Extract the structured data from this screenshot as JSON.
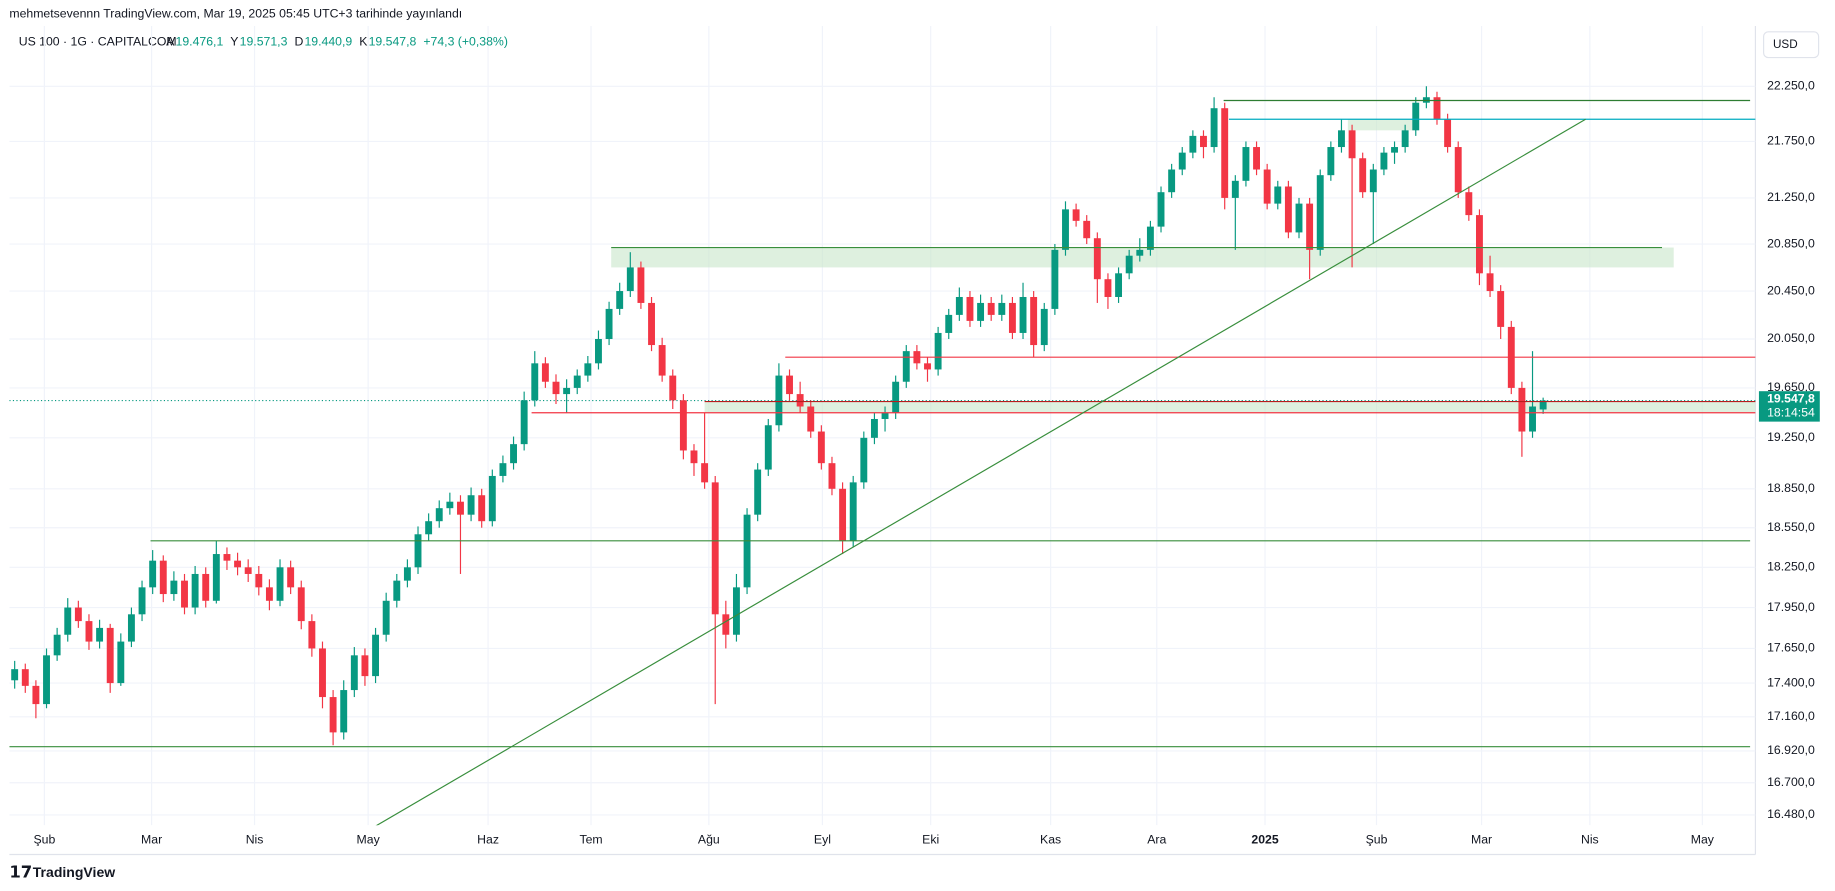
{
  "header": {
    "published": "mehmetsevennn TradingView.com, Mar 19, 2025 05:45 UTC+3 tarihinde yayınlandı",
    "symbol": "US 100 · 1G · CAPITALCOM",
    "ohlc": [
      {
        "key": "A",
        "label": "19.476,1"
      },
      {
        "key": "Y",
        "label": "19.571,3"
      },
      {
        "key": "D",
        "label": "19.440,9"
      },
      {
        "key": "K",
        "label": "19.547,8"
      }
    ],
    "change": "+74,3 (+0,38%)",
    "currency": "USD",
    "last_price_label": "19.547,8",
    "countdown": "18:14:54",
    "brand": "TradingView"
  },
  "chart_data": {
    "type": "candlestick",
    "log_scale": true,
    "grid": true,
    "up_color": "#089981",
    "down_color": "#f23645",
    "xlim": [
      -0.5,
      164
    ],
    "ylim": [
      16410,
      22810
    ],
    "xticks": [
      {
        "value": 2.8,
        "label": "Şub"
      },
      {
        "value": 12.9,
        "label": "Mar"
      },
      {
        "value": 22.6,
        "label": "Nis"
      },
      {
        "value": 33.3,
        "label": "May"
      },
      {
        "value": 44.6,
        "label": "Haz"
      },
      {
        "value": 54.3,
        "label": "Tem"
      },
      {
        "value": 65.4,
        "label": "Ağu"
      },
      {
        "value": 76.1,
        "label": "Eyl"
      },
      {
        "value": 86.3,
        "label": "Eki"
      },
      {
        "value": 97.6,
        "label": "Kas"
      },
      {
        "value": 107.6,
        "label": "Ara"
      },
      {
        "value": 117.8,
        "label": "2025"
      },
      {
        "value": 128.3,
        "label": "Şub"
      },
      {
        "value": 138.2,
        "label": "Mar"
      },
      {
        "value": 148.4,
        "label": "Nis"
      },
      {
        "value": 159,
        "label": "May"
      }
    ],
    "yticks": [
      {
        "value": 22250,
        "label": "22.250,0"
      },
      {
        "value": 21750,
        "label": "21.750,0"
      },
      {
        "value": 21250,
        "label": "21.250,0"
      },
      {
        "value": 20850,
        "label": "20.850,0"
      },
      {
        "value": 20450,
        "label": "20.450,0"
      },
      {
        "value": 20050,
        "label": "20.050,0"
      },
      {
        "value": 19650,
        "label": "19.650,0"
      },
      {
        "value": 19250,
        "label": "19.250,0"
      },
      {
        "value": 18850,
        "label": "18.850,0"
      },
      {
        "value": 18550,
        "label": "18.550,0"
      },
      {
        "value": 18250,
        "label": "18.250,0"
      },
      {
        "value": 17950,
        "label": "17.950,0"
      },
      {
        "value": 17650,
        "label": "17.650,0"
      },
      {
        "value": 17400,
        "label": "17.400,0"
      },
      {
        "value": 17160,
        "label": "17.160,0"
      },
      {
        "value": 16920,
        "label": "16.920,0"
      },
      {
        "value": 16700,
        "label": "16.700,0"
      },
      {
        "value": 16480,
        "label": "16.480,0"
      }
    ],
    "candles": [
      [
        17420,
        17560,
        17360,
        17500
      ],
      [
        17500,
        17540,
        17330,
        17380
      ],
      [
        17380,
        17420,
        17150,
        17250
      ],
      [
        17250,
        17650,
        17220,
        17600
      ],
      [
        17600,
        17800,
        17560,
        17750
      ],
      [
        17750,
        18020,
        17700,
        17950
      ],
      [
        17950,
        18000,
        17800,
        17850
      ],
      [
        17850,
        17900,
        17640,
        17700
      ],
      [
        17700,
        17860,
        17650,
        17800
      ],
      [
        17800,
        17830,
        17330,
        17400
      ],
      [
        17400,
        17760,
        17380,
        17700
      ],
      [
        17700,
        17950,
        17660,
        17900
      ],
      [
        17900,
        18150,
        17850,
        18100
      ],
      [
        18100,
        18380,
        18050,
        18300
      ],
      [
        18300,
        18340,
        17990,
        18050
      ],
      [
        18050,
        18220,
        18000,
        18150
      ],
      [
        18150,
        18200,
        17900,
        17950
      ],
      [
        17950,
        18260,
        17900,
        18200
      ],
      [
        18200,
        18250,
        17950,
        18000
      ],
      [
        18000,
        18450,
        17980,
        18350
      ],
      [
        18350,
        18400,
        18230,
        18300
      ],
      [
        18300,
        18360,
        18190,
        18250
      ],
      [
        18250,
        18310,
        18140,
        18200
      ],
      [
        18200,
        18260,
        18040,
        18100
      ],
      [
        18100,
        18160,
        17930,
        18000
      ],
      [
        18000,
        18310,
        17960,
        18250
      ],
      [
        18250,
        18300,
        18050,
        18100
      ],
      [
        18100,
        18150,
        17790,
        17850
      ],
      [
        17850,
        17900,
        17590,
        17650
      ],
      [
        17650,
        17700,
        17220,
        17300
      ],
      [
        17300,
        17350,
        16960,
        17050
      ],
      [
        17050,
        17420,
        17000,
        17350
      ],
      [
        17350,
        17660,
        17300,
        17600
      ],
      [
        17600,
        17650,
        17380,
        17450
      ],
      [
        17450,
        17800,
        17400,
        17750
      ],
      [
        17750,
        18060,
        17700,
        18000
      ],
      [
        18000,
        18200,
        17950,
        18150
      ],
      [
        18150,
        18310,
        18100,
        18250
      ],
      [
        18250,
        18560,
        18200,
        18500
      ],
      [
        18500,
        18660,
        18450,
        18600
      ],
      [
        18600,
        18760,
        18550,
        18700
      ],
      [
        18700,
        18820,
        18650,
        18750
      ],
      [
        18750,
        18800,
        18200,
        18650
      ],
      [
        18650,
        18860,
        18600,
        18800
      ],
      [
        18800,
        18850,
        18550,
        18600
      ],
      [
        18600,
        19000,
        18560,
        18950
      ],
      [
        18950,
        19110,
        18900,
        19050
      ],
      [
        19050,
        19260,
        19000,
        19200
      ],
      [
        19200,
        19620,
        19150,
        19550
      ],
      [
        19550,
        19950,
        19500,
        19850
      ],
      [
        19850,
        19900,
        19650,
        19700
      ],
      [
        19700,
        19760,
        19520,
        19600
      ],
      [
        19600,
        19720,
        19450,
        19650
      ],
      [
        19650,
        19800,
        19600,
        19750
      ],
      [
        19750,
        19910,
        19700,
        19850
      ],
      [
        19850,
        20120,
        19800,
        20050
      ],
      [
        20050,
        20360,
        20000,
        20300
      ],
      [
        20300,
        20520,
        20250,
        20450
      ],
      [
        20450,
        20780,
        20400,
        20650
      ],
      [
        20650,
        20700,
        20300,
        20350
      ],
      [
        20350,
        20400,
        19950,
        20000
      ],
      [
        20000,
        20060,
        19700,
        19750
      ],
      [
        19750,
        19800,
        19480,
        19550
      ],
      [
        19550,
        19600,
        19080,
        19150
      ],
      [
        19150,
        19200,
        18950,
        19050
      ],
      [
        19050,
        19450,
        18850,
        18900
      ],
      [
        18900,
        18950,
        17250,
        17900
      ],
      [
        17900,
        18000,
        17650,
        17750
      ],
      [
        17750,
        18200,
        17700,
        18100
      ],
      [
        18100,
        18700,
        18050,
        18650
      ],
      [
        18650,
        19050,
        18600,
        19000
      ],
      [
        19000,
        19400,
        18950,
        19350
      ],
      [
        19350,
        19850,
        19300,
        19750
      ],
      [
        19750,
        19800,
        19550,
        19600
      ],
      [
        19600,
        19700,
        19450,
        19500
      ],
      [
        19500,
        19550,
        19250,
        19300
      ],
      [
        19300,
        19350,
        19000,
        19050
      ],
      [
        19050,
        19100,
        18800,
        18850
      ],
      [
        18850,
        18900,
        18350,
        18450
      ],
      [
        18450,
        18950,
        18400,
        18900
      ],
      [
        18900,
        19300,
        18850,
        19250
      ],
      [
        19250,
        19450,
        19200,
        19400
      ],
      [
        19400,
        19500,
        19300,
        19450
      ],
      [
        19450,
        19750,
        19400,
        19700
      ],
      [
        19700,
        20000,
        19650,
        19950
      ],
      [
        19950,
        20000,
        19800,
        19850
      ],
      [
        19850,
        19900,
        19700,
        19800
      ],
      [
        19800,
        20150,
        19750,
        20100
      ],
      [
        20100,
        20300,
        20050,
        20250
      ],
      [
        20250,
        20480,
        20200,
        20400
      ],
      [
        20400,
        20450,
        20150,
        20200
      ],
      [
        20200,
        20420,
        20150,
        20350
      ],
      [
        20350,
        20400,
        20200,
        20250
      ],
      [
        20250,
        20420,
        20200,
        20350
      ],
      [
        20350,
        20400,
        20050,
        20100
      ],
      [
        20100,
        20520,
        20050,
        20400
      ],
      [
        20400,
        20450,
        19900,
        20000
      ],
      [
        20000,
        20350,
        19950,
        20300
      ],
      [
        20300,
        20850,
        20250,
        20800
      ],
      [
        20800,
        21220,
        20750,
        21150
      ],
      [
        21150,
        21200,
        21000,
        21050
      ],
      [
        21050,
        21100,
        20850,
        20900
      ],
      [
        20900,
        20950,
        20350,
        20550
      ],
      [
        20550,
        20600,
        20300,
        20400
      ],
      [
        20400,
        20650,
        20350,
        20600
      ],
      [
        20600,
        20800,
        20550,
        20750
      ],
      [
        20750,
        20900,
        20700,
        20800
      ],
      [
        20800,
        21050,
        20750,
        21000
      ],
      [
        21000,
        21350,
        20950,
        21300
      ],
      [
        21300,
        21550,
        21250,
        21500
      ],
      [
        21500,
        21700,
        21450,
        21650
      ],
      [
        21650,
        21850,
        21600,
        21800
      ],
      [
        21800,
        21850,
        21600,
        21700
      ],
      [
        21700,
        22150,
        21650,
        22050
      ],
      [
        22050,
        22100,
        21150,
        21250
      ],
      [
        21250,
        21450,
        20800,
        21400
      ],
      [
        21400,
        21750,
        21350,
        21700
      ],
      [
        21700,
        21750,
        21450,
        21500
      ],
      [
        21500,
        21550,
        21150,
        21200
      ],
      [
        21200,
        21400,
        21150,
        21350
      ],
      [
        21350,
        21400,
        20900,
        20950
      ],
      [
        20950,
        21250,
        20900,
        21200
      ],
      [
        21200,
        21250,
        20550,
        20800
      ],
      [
        20800,
        21500,
        20750,
        21450
      ],
      [
        21450,
        21750,
        21400,
        21700
      ],
      [
        21700,
        21950,
        21650,
        21850
      ],
      [
        21850,
        21900,
        20650,
        21600
      ],
      [
        21600,
        21650,
        21250,
        21300
      ],
      [
        21300,
        21550,
        20850,
        21500
      ],
      [
        21500,
        21700,
        21450,
        21650
      ],
      [
        21650,
        21750,
        21550,
        21700
      ],
      [
        21700,
        21900,
        21650,
        21850
      ],
      [
        21850,
        22150,
        21800,
        22100
      ],
      [
        22100,
        22250,
        22050,
        22150
      ],
      [
        22150,
        22200,
        21900,
        21950
      ],
      [
        21950,
        22000,
        21650,
        21700
      ],
      [
        21700,
        21750,
        21250,
        21300
      ],
      [
        21300,
        21350,
        21050,
        21100
      ],
      [
        21100,
        21150,
        20500,
        20600
      ],
      [
        20600,
        20750,
        20400,
        20450
      ],
      [
        20450,
        20500,
        20050,
        20150
      ],
      [
        20150,
        20200,
        19600,
        19650
      ],
      [
        19650,
        19700,
        19100,
        19300
      ],
      [
        19300,
        19950,
        19250,
        19500
      ],
      [
        19476.1,
        19571.3,
        19440.9,
        19547.8
      ]
    ],
    "zones": [
      {
        "color": "#c8e6c9",
        "x": [
          56.2,
          156.3
        ],
        "y": [
          20650,
          20820
        ]
      },
      {
        "color": "#c8e6c9",
        "x": [
          65,
          164
        ],
        "y": [
          19450,
          19540
        ]
      },
      {
        "color": "#c8e6c9",
        "x": [
          125.6,
          131.7
        ],
        "y": [
          21850,
          21950
        ]
      }
    ],
    "lines": [
      {
        "color": "#2e7d32",
        "x": [
          113.9,
          163.5
        ],
        "y": [
          22120,
          22120
        ]
      },
      {
        "color": "#00acc1",
        "x": [
          114.4,
          164
        ],
        "y": [
          21950,
          21950
        ]
      },
      {
        "color": "#388e3c",
        "x": [
          56.2,
          155.2
        ],
        "y": [
          20820,
          20820
        ]
      },
      {
        "color": "#388e3c",
        "x": [
          12.8,
          163.5
        ],
        "y": [
          18450,
          18450
        ]
      },
      {
        "color": "#388e3c",
        "x": [
          -0.5,
          163.5
        ],
        "y": [
          16950,
          16950
        ]
      },
      {
        "color": "#f23645",
        "x": [
          72.6,
          164
        ],
        "y": [
          19900,
          19900
        ]
      },
      {
        "color": "#f23645",
        "x": [
          48.7,
          164
        ],
        "y": [
          19450,
          19450
        ]
      },
      {
        "color": "#b71c1c",
        "x": [
          65,
          164
        ],
        "y": [
          19540,
          19540
        ]
      },
      {
        "color": "#388e3c",
        "x": [
          33.9,
          148
        ],
        "y": [
          16400,
          21950
        ]
      }
    ]
  }
}
